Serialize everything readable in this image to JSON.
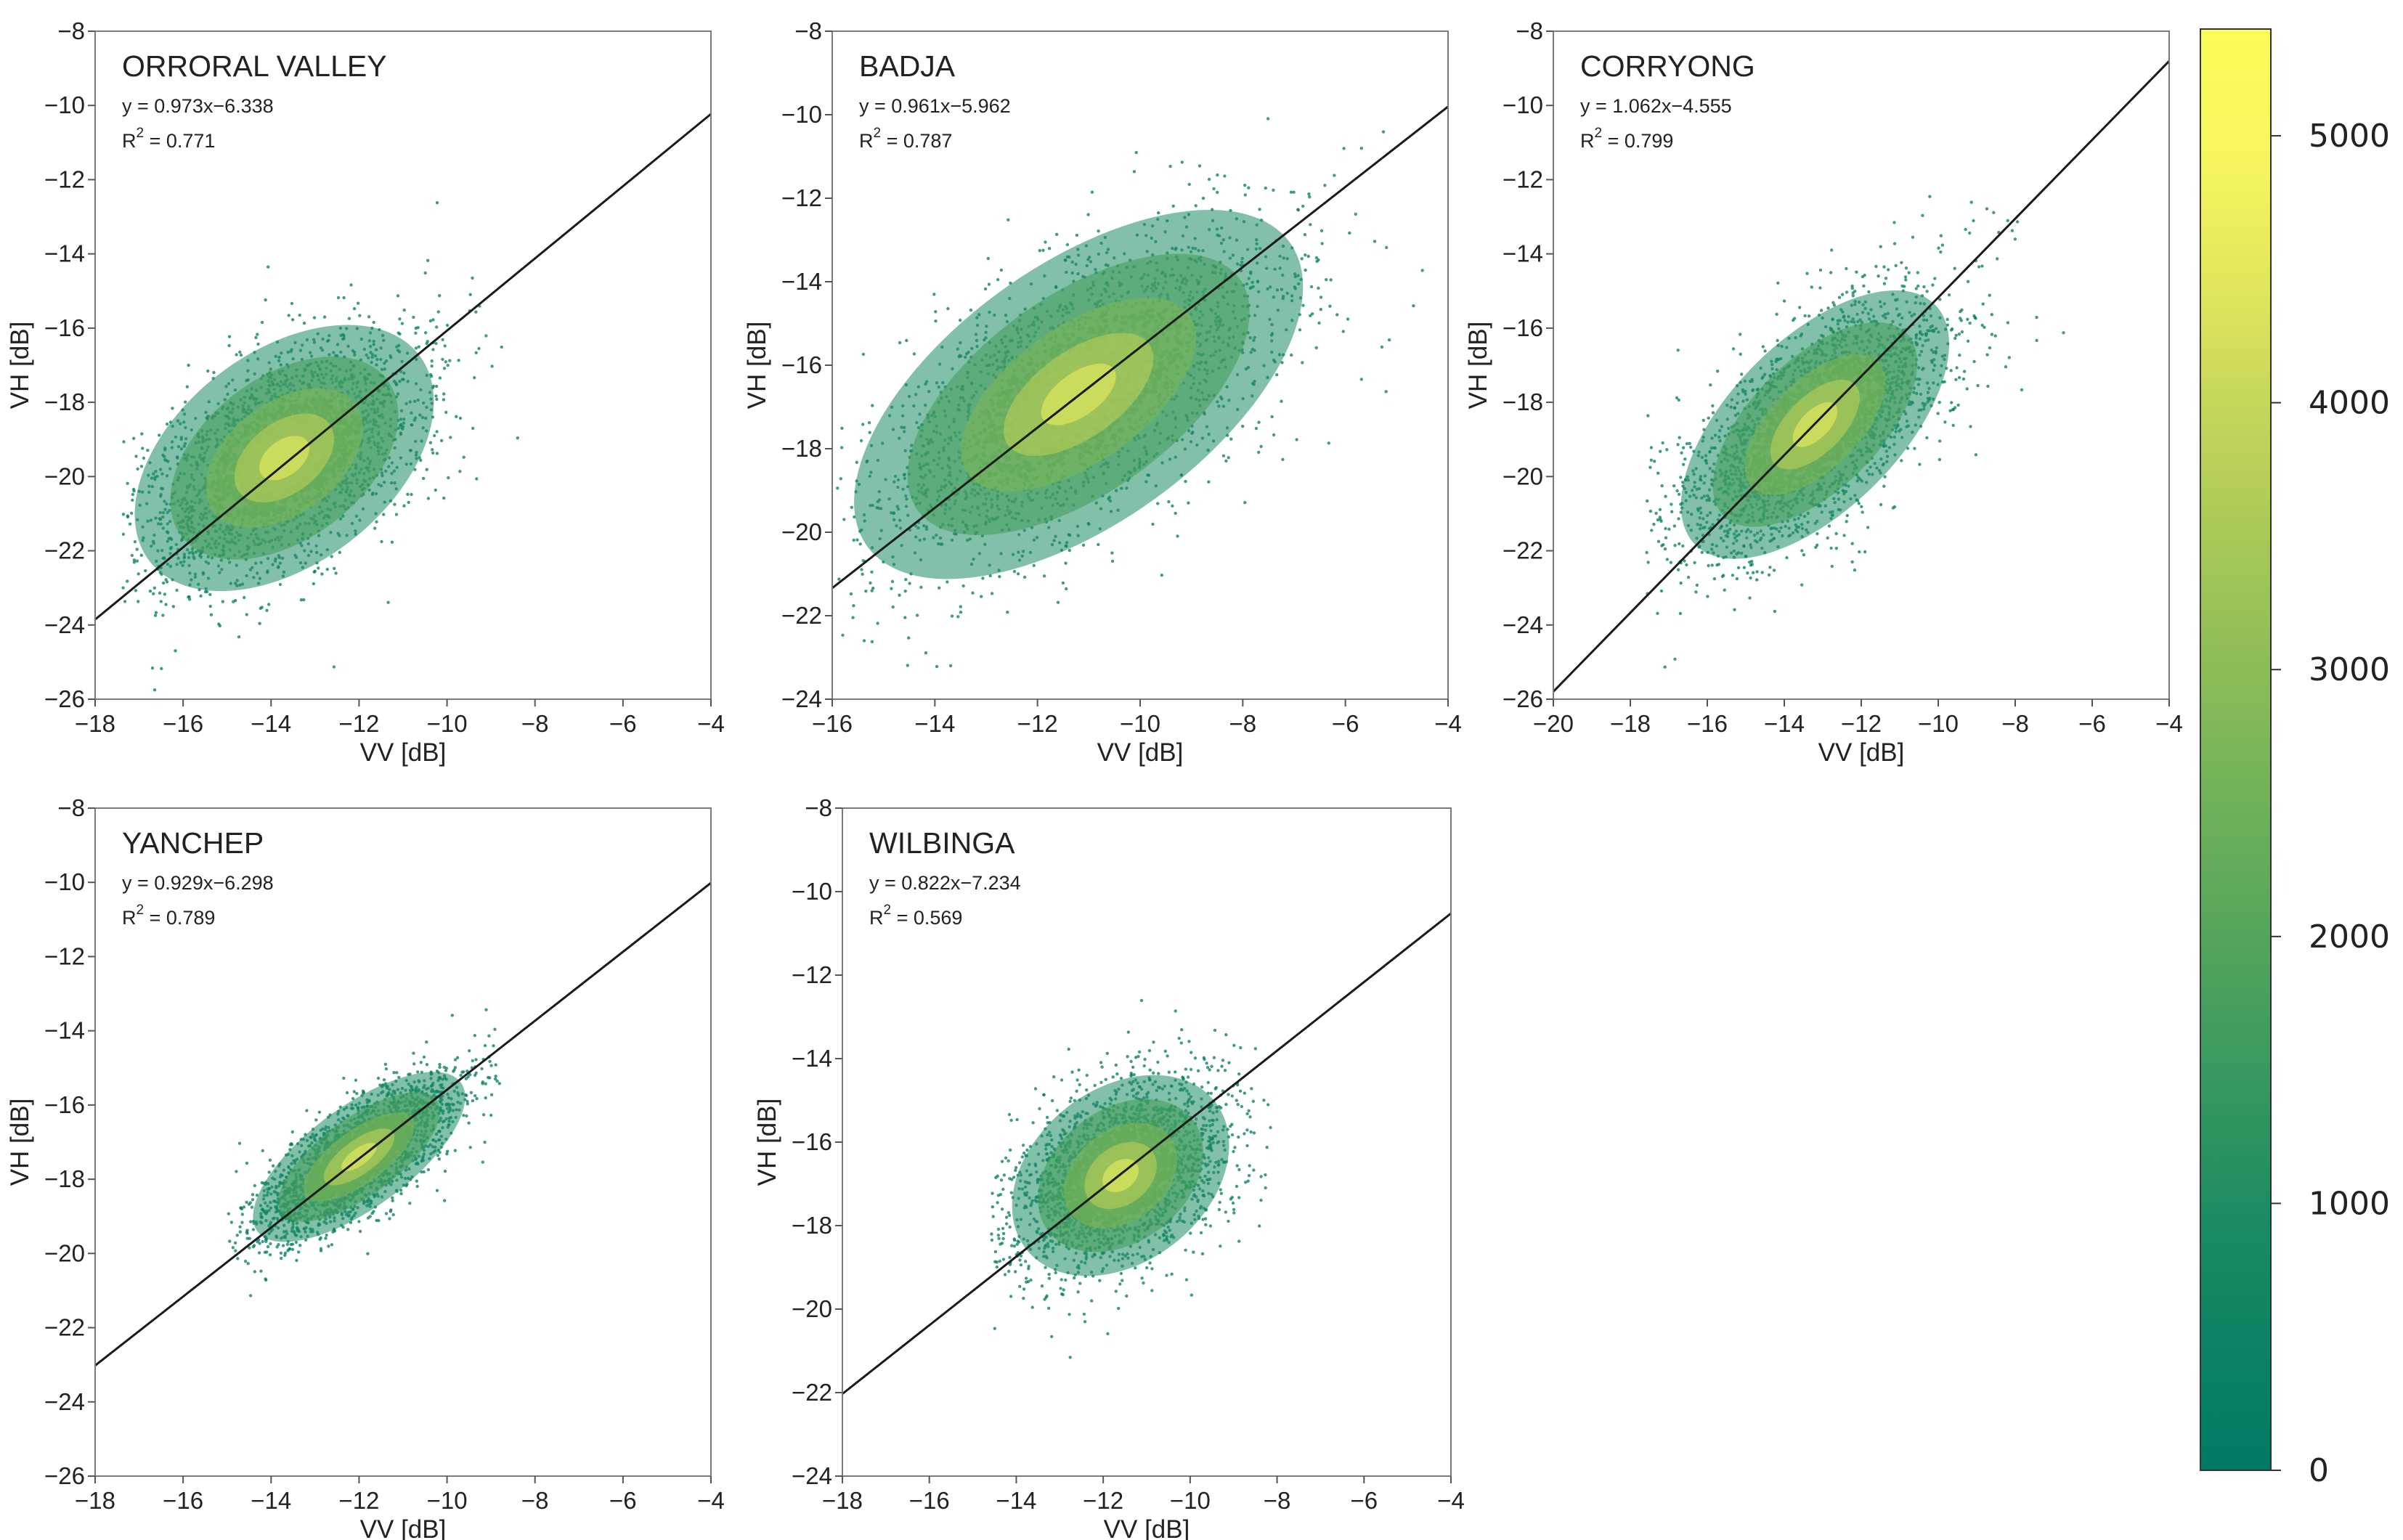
{
  "figure": {
    "colormap": [
      "#007a63",
      "#0c8262",
      "#1e8c62",
      "#38985f",
      "#53a45c",
      "#6db05a",
      "#89bb58",
      "#a5c757",
      "#c2d45a",
      "#dfe65c",
      "#f6f55e",
      "#fcfc5a"
    ]
  },
  "colorbar": {
    "min": 0,
    "max": 5400,
    "ticks": [
      0,
      1000,
      2000,
      3000,
      4000,
      5000
    ],
    "tick_labels": [
      "0",
      "1000",
      "2000",
      "3000",
      "4000",
      "5000"
    ]
  },
  "chart_data": [
    {
      "type": "scatter",
      "title": "ORRORAL VALLEY",
      "xlabel": "VV [dB]",
      "ylabel": "VH [dB]",
      "xlim": [
        -18,
        -4
      ],
      "ylim": [
        -26,
        -8
      ],
      "xticks": [
        -18,
        -16,
        -14,
        -12,
        -10,
        -8,
        -6,
        -4
      ],
      "xtick_labels": [
        "−18",
        "−16",
        "−14",
        "−12",
        "−10",
        "−8",
        "−6",
        "−4"
      ],
      "yticks": [
        -26,
        -24,
        -22,
        -20,
        -18,
        -16,
        -14,
        -12,
        -10,
        -8
      ],
      "ytick_labels": [
        "−26",
        "−24",
        "−22",
        "−20",
        "−18",
        "−16",
        "−14",
        "−12",
        "−10",
        "−8"
      ],
      "equation": "y = 0.973x−6.338",
      "r2_label": "R",
      "r2_exp": "2",
      "r2_value": " = 0.771",
      "fit": {
        "slope": 0.973,
        "intercept": -6.338,
        "x_range": [
          -18,
          -4
        ]
      },
      "density": {
        "cx": -13.7,
        "cy": -19.5,
        "sx": 1.75,
        "sr": 1.15,
        "xmin": -17.4,
        "xmax": -6.6
      }
    },
    {
      "type": "scatter",
      "title": "BADJA",
      "xlabel": "VV [dB]",
      "ylabel": "VH [dB]",
      "xlim": [
        -16,
        -4
      ],
      "ylim": [
        -24,
        -8
      ],
      "xticks": [
        -16,
        -14,
        -12,
        -10,
        -8,
        -6,
        -4
      ],
      "xtick_labels": [
        "−16",
        "−14",
        "−12",
        "−10",
        "−8",
        "−6",
        "−4"
      ],
      "yticks": [
        -24,
        -22,
        -20,
        -18,
        -16,
        -14,
        -12,
        -10,
        -8
      ],
      "ytick_labels": [
        "−24",
        "−22",
        "−20",
        "−18",
        "−16",
        "−14",
        "−12",
        "−10",
        "−8"
      ],
      "equation": "y = 0.961x−5.962",
      "r2_label": "R",
      "r2_exp": "2",
      "r2_value": " = 0.787",
      "fit": {
        "slope": 0.961,
        "intercept": -5.962,
        "x_range": [
          -16,
          -4
        ]
      },
      "density": {
        "cx": -11.2,
        "cy": -16.7,
        "sx": 2.3,
        "sr": 1.2,
        "xmin": -15.9,
        "xmax": -4.1
      }
    },
    {
      "type": "scatter",
      "title": "CORRYONG",
      "xlabel": "VV [dB]",
      "ylabel": "VH [dB]",
      "xlim": [
        -20,
        -4
      ],
      "ylim": [
        -26,
        -8
      ],
      "xticks": [
        -20,
        -18,
        -16,
        -14,
        -12,
        -10,
        -8,
        -6,
        -4
      ],
      "xtick_labels": [
        "−20",
        "−18",
        "−16",
        "−14",
        "−12",
        "−10",
        "−8",
        "−6",
        "−4"
      ],
      "yticks": [
        -26,
        -24,
        -22,
        -20,
        -18,
        -16,
        -14,
        -12,
        -10,
        -8
      ],
      "ytick_labels": [
        "−26",
        "−24",
        "−22",
        "−20",
        "−18",
        "−16",
        "−14",
        "−12",
        "−10",
        "−8"
      ],
      "equation": "y = 1.062x−4.555",
      "r2_label": "R",
      "r2_exp": "2",
      "r2_value": " = 0.799",
      "fit": {
        "slope": 1.062,
        "intercept": -4.555,
        "x_range": [
          -20,
          -4
        ]
      },
      "density": {
        "cx": -13.2,
        "cy": -18.6,
        "sx": 2.0,
        "sr": 1.05,
        "xmin": -17.6,
        "xmax": -4.4
      }
    },
    {
      "type": "scatter",
      "title": "YANCHEP",
      "xlabel": "VV [dB]",
      "ylabel": "VH [dB]",
      "xlim": [
        -18,
        -4
      ],
      "ylim": [
        -26,
        -8
      ],
      "xticks": [
        -18,
        -16,
        -14,
        -12,
        -10,
        -8,
        -6,
        -4
      ],
      "xtick_labels": [
        "−18",
        "−16",
        "−14",
        "−12",
        "−10",
        "−8",
        "−6",
        "−4"
      ],
      "yticks": [
        -26,
        -24,
        -22,
        -20,
        -18,
        -16,
        -14,
        -12,
        -10,
        -8
      ],
      "ytick_labels": [
        "−26",
        "−24",
        "−22",
        "−20",
        "−18",
        "−16",
        "−14",
        "−12",
        "−10",
        "−8"
      ],
      "equation": "y = 0.929x−6.298",
      "r2_label": "R",
      "r2_exp": "2",
      "r2_value": " = 0.789",
      "fit": {
        "slope": 0.929,
        "intercept": -6.298,
        "x_range": [
          -18,
          -4
        ]
      },
      "density": {
        "cx": -12.0,
        "cy": -17.4,
        "sx": 1.3,
        "sr": 0.55,
        "xmin": -15.0,
        "xmax": -8.8
      }
    },
    {
      "type": "scatter",
      "title": "WILBINGA",
      "xlabel": "VV [dB]",
      "ylabel": "VH [dB]",
      "xlim": [
        -18,
        -4
      ],
      "ylim": [
        -24,
        -8
      ],
      "xticks": [
        -18,
        -16,
        -14,
        -12,
        -10,
        -8,
        -6,
        -4
      ],
      "xtick_labels": [
        "−18",
        "−16",
        "−14",
        "−12",
        "−10",
        "−8",
        "−6",
        "−4"
      ],
      "yticks": [
        -24,
        -22,
        -20,
        -18,
        -16,
        -14,
        -12,
        -10,
        -8
      ],
      "ytick_labels": [
        "−24",
        "−22",
        "−20",
        "−18",
        "−16",
        "−14",
        "−12",
        "−10",
        "−8"
      ],
      "equation": "y = 0.822x−7.234",
      "r2_label": "R",
      "r2_exp": "2",
      "r2_value": " = 0.569",
      "fit": {
        "slope": 0.822,
        "intercept": -7.234,
        "x_range": [
          -18,
          -4
        ]
      },
      "density": {
        "cx": -11.6,
        "cy": -16.8,
        "sx": 1.25,
        "sr": 0.95,
        "xmin": -14.6,
        "xmax": -8.0
      }
    }
  ]
}
